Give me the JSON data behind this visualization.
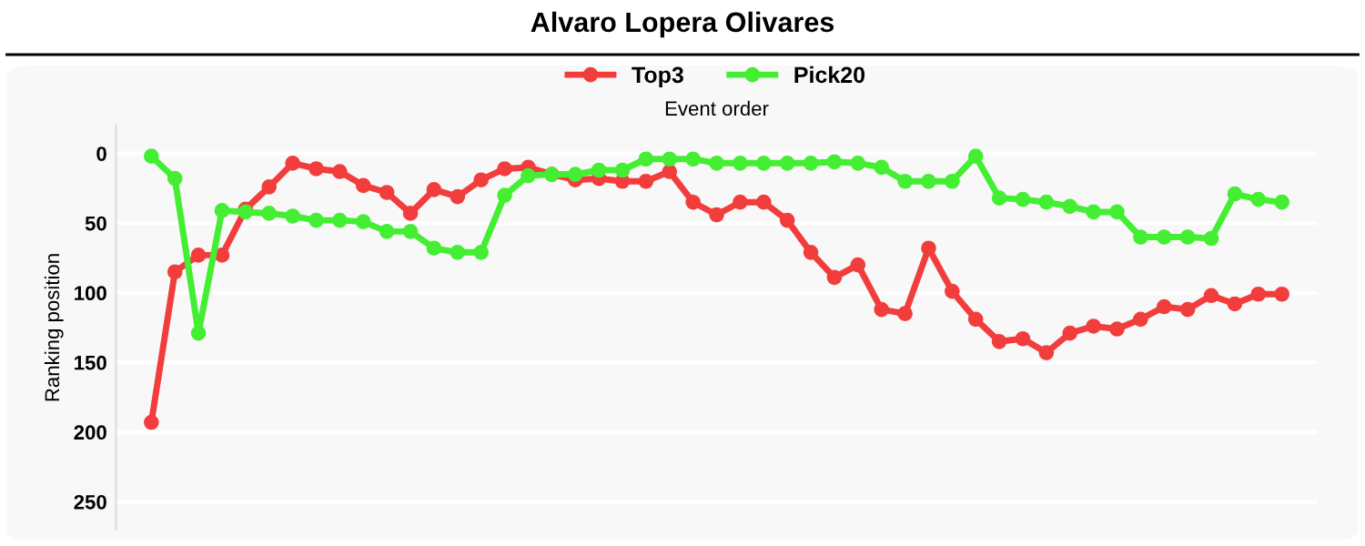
{
  "chart_data": {
    "type": "line",
    "title": "Alvaro Lopera Olivares",
    "xlabel": "Event order",
    "ylabel": "Ranking position",
    "categories": [
      null,
      null,
      null,
      null,
      null,
      null,
      null,
      null,
      null,
      null,
      null,
      null,
      null,
      null,
      null,
      null,
      null,
      null,
      null,
      null,
      null,
      null,
      null,
      null,
      null,
      null,
      null,
      null,
      null,
      null,
      null,
      null,
      null,
      null,
      null,
      null,
      null,
      null,
      null,
      null,
      null,
      null,
      null,
      null,
      null,
      null,
      null,
      null,
      null
    ],
    "series": [
      {
        "name": "Top3",
        "color": "#f23d3d",
        "values": [
          193,
          85,
          73,
          73,
          40,
          24,
          7,
          11,
          13,
          23,
          28,
          43,
          26,
          31,
          19,
          11,
          10,
          15,
          19,
          18,
          20,
          20,
          13,
          35,
          44,
          35,
          35,
          48,
          71,
          89,
          80,
          112,
          115,
          68,
          99,
          119,
          135,
          133,
          143,
          129,
          124,
          126,
          119,
          110,
          112,
          102,
          108,
          101,
          101
        ]
      },
      {
        "name": "Pick20",
        "color": "#44ee33",
        "values": [
          2,
          18,
          129,
          41,
          42,
          43,
          45,
          48,
          48,
          49,
          56,
          56,
          68,
          71,
          71,
          30,
          16,
          15,
          15,
          12,
          12,
          4,
          4,
          4,
          7,
          7,
          7,
          7,
          7,
          6,
          7,
          10,
          20,
          20,
          20,
          2,
          32,
          33,
          35,
          38,
          42,
          42,
          60,
          60,
          60,
          61,
          29,
          33,
          35
        ]
      }
    ],
    "ylim": [
      270,
      -20
    ],
    "yticks": [
      0,
      50,
      100,
      150,
      200,
      250
    ],
    "grid": "y",
    "legend": "top",
    "marker": "circle",
    "line_style": "solid",
    "tick_labels": "y"
  }
}
